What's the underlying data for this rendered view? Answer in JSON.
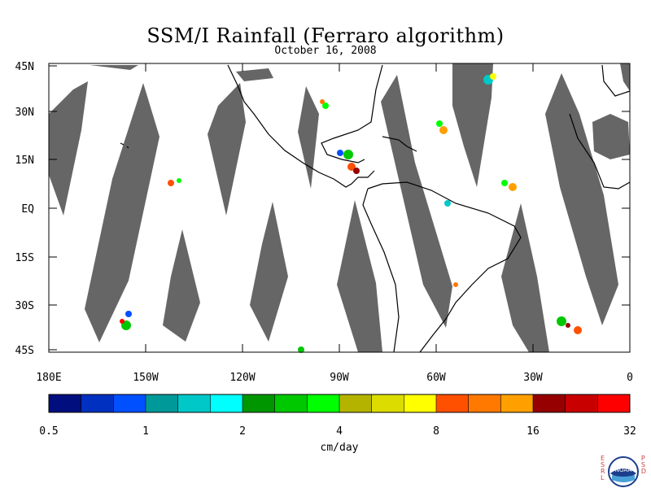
{
  "title": "SSM/I Rainfall (Ferraro algorithm)",
  "date": "October 16, 2008",
  "lat_labels": [
    "45N",
    "30N",
    "15N",
    "EQ",
    "15S",
    "30S",
    "45S"
  ],
  "lon_labels": [
    "180E",
    "150W",
    "120W",
    "90W",
    "60W",
    "30W",
    "0"
  ],
  "colorbar": {
    "unit": "cm/day",
    "tick_labels": [
      "0.5",
      "1",
      "2",
      "4",
      "8",
      "16",
      "32"
    ],
    "colors": [
      "#000e7e",
      "#0030c0",
      "#0050ff",
      "#009999",
      "#00c8c8",
      "#00ffff",
      "#009600",
      "#00c800",
      "#00ff00",
      "#b4b400",
      "#dcdc00",
      "#ffff00",
      "#ff5000",
      "#ff7800",
      "#ffa000",
      "#960000",
      "#c80000",
      "#ff0000"
    ]
  },
  "logo": {
    "left_letters": "ESRL",
    "right_letters": "PSD",
    "emblem": "NOAA"
  }
}
